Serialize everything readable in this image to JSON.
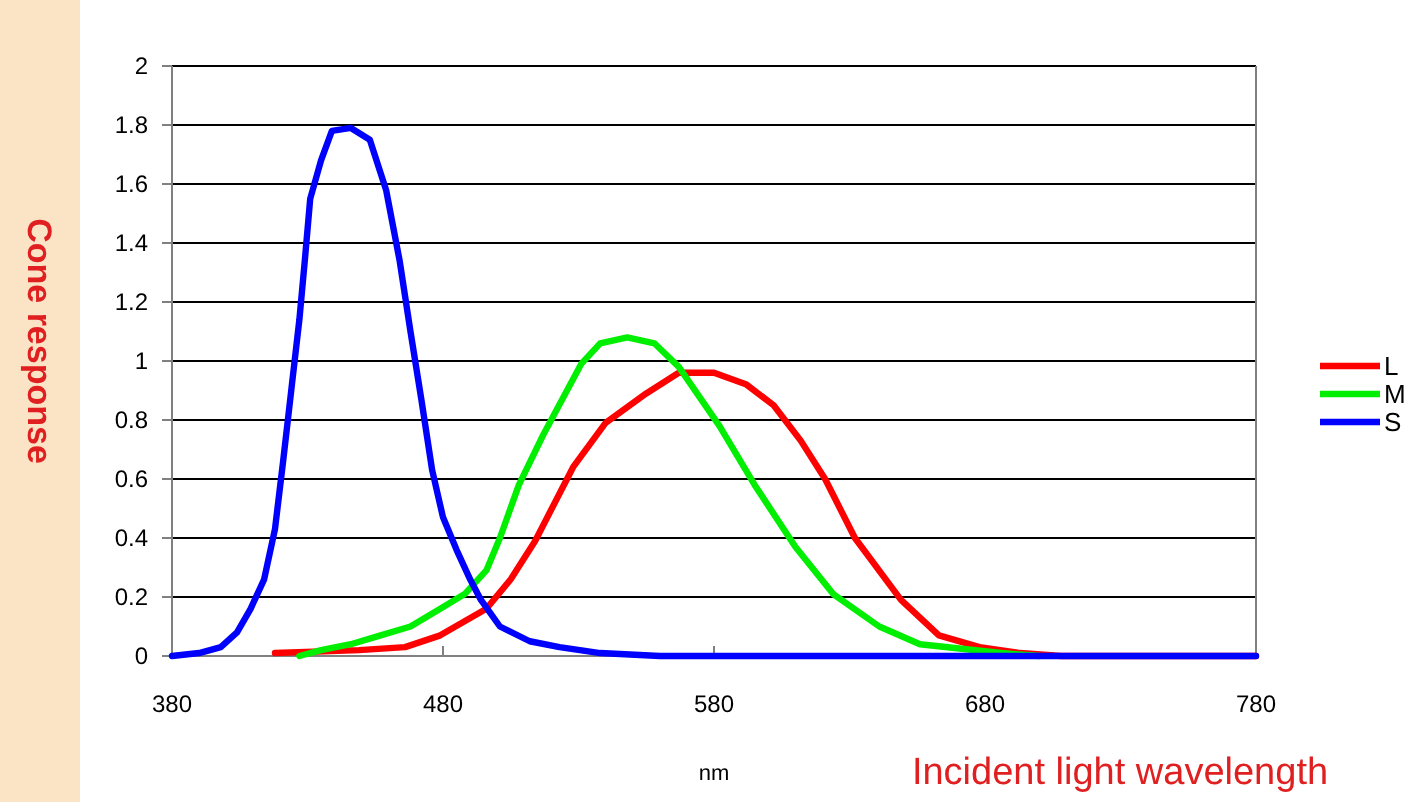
{
  "chart_data": {
    "type": "line",
    "xlabel": "nm",
    "ylabel": "Cone response",
    "annotations": [
      "Incident light wavelength"
    ],
    "xlim": [
      380,
      780
    ],
    "xticks": [
      380,
      480,
      580,
      680,
      780
    ],
    "ylim": [
      0,
      2
    ],
    "yticks": [
      0,
      0.2,
      0.4,
      0.6,
      0.8,
      1,
      1.2,
      1.4,
      1.6,
      1.8,
      2
    ],
    "grid": "y",
    "legend": "right",
    "line_style": "solid",
    "marker": "none",
    "series": [
      {
        "name": "L",
        "color": "#ff0000",
        "x": [
          418,
          449,
          466,
          479,
          496,
          505,
          514,
          528,
          540,
          555,
          567,
          580,
          592,
          602,
          612,
          621,
          632,
          649,
          663,
          678,
          693,
          708,
          780
        ],
        "values": [
          0.01,
          0.02,
          0.03,
          0.07,
          0.16,
          0.26,
          0.39,
          0.64,
          0.79,
          0.89,
          0.96,
          0.96,
          0.92,
          0.85,
          0.73,
          0.6,
          0.4,
          0.19,
          0.07,
          0.03,
          0.01,
          0,
          0
        ]
      },
      {
        "name": "M",
        "color": "#00ee00",
        "x": [
          427,
          435,
          446,
          457,
          468,
          479,
          488,
          496,
          501,
          508,
          517,
          531,
          538,
          548,
          558,
          567,
          582,
          595,
          610,
          624,
          641,
          656,
          686,
          700
        ],
        "values": [
          0,
          0.02,
          0.04,
          0.07,
          0.1,
          0.16,
          0.21,
          0.29,
          0.4,
          0.58,
          0.75,
          0.99,
          1.06,
          1.08,
          1.06,
          0.98,
          0.78,
          0.58,
          0.37,
          0.21,
          0.1,
          0.04,
          0.01,
          0
        ]
      },
      {
        "name": "S",
        "color": "#0000ff",
        "x": [
          380,
          390,
          398,
          404,
          409,
          414,
          418,
          421,
          424,
          427,
          429,
          431,
          435,
          439,
          446,
          453,
          459,
          464,
          468,
          472,
          476,
          480,
          485,
          490,
          494,
          501,
          512,
          523,
          538,
          560,
          780
        ],
        "values": [
          0,
          0.01,
          0.03,
          0.08,
          0.16,
          0.26,
          0.43,
          0.66,
          0.9,
          1.14,
          1.34,
          1.55,
          1.68,
          1.78,
          1.79,
          1.75,
          1.58,
          1.34,
          1.1,
          0.87,
          0.63,
          0.47,
          0.36,
          0.26,
          0.19,
          0.1,
          0.05,
          0.03,
          0.01,
          0,
          0
        ]
      }
    ]
  }
}
